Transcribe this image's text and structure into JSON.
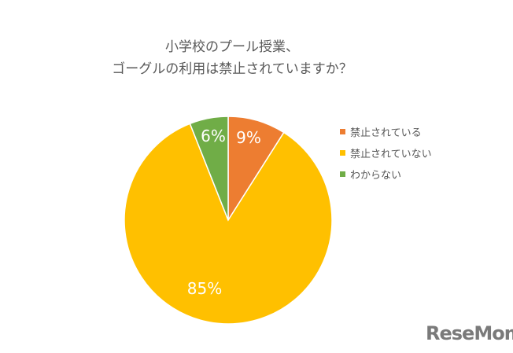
{
  "chart_data": {
    "type": "pie",
    "title": [
      "小学校のプール授業、",
      "ゴーグルの利用は禁止されていますか？"
    ],
    "categories": [
      "禁止されている",
      "禁止されていない",
      "わからない"
    ],
    "values": [
      9,
      85,
      6
    ],
    "data_labels": [
      "9%",
      "85%",
      "6%"
    ],
    "colors": [
      "#ED7D31",
      "#FFC000",
      "#70AD47"
    ],
    "legend": "right"
  },
  "logo": "ReseMom"
}
